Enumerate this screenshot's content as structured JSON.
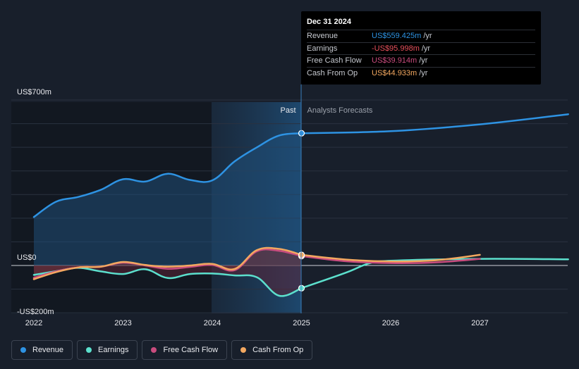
{
  "chart_data": {
    "type": "line",
    "x_unit": "year",
    "xlim": [
      2022.0,
      2027.99
    ],
    "ylim": [
      -200,
      700
    ],
    "y_ticks": [
      {
        "value": 700,
        "label": "US$700m"
      },
      {
        "value": 0,
        "label": "US$0"
      },
      {
        "value": -200,
        "label": "-US$200m"
      }
    ],
    "x_ticks": [
      "2022",
      "2023",
      "2024",
      "2025",
      "2026",
      "2027"
    ],
    "past_boundary": 2025.0,
    "past_shade_start": 2024.0,
    "past_label": "Past",
    "forecast_label": "Analysts Forecasts",
    "series": [
      {
        "name": "Revenue",
        "color": "#2e93e3",
        "past": [
          [
            2022.0,
            205
          ],
          [
            2022.25,
            270
          ],
          [
            2022.5,
            290
          ],
          [
            2022.75,
            320
          ],
          [
            2023.0,
            365
          ],
          [
            2023.25,
            355
          ],
          [
            2023.5,
            388
          ],
          [
            2023.75,
            362
          ],
          [
            2024.0,
            360
          ],
          [
            2024.25,
            440
          ],
          [
            2024.5,
            500
          ],
          [
            2024.75,
            550
          ],
          [
            2025.0,
            559.425
          ]
        ],
        "forecast": [
          [
            2025.0,
            559.425
          ],
          [
            2026.0,
            568
          ],
          [
            2027.0,
            597
          ],
          [
            2027.99,
            640
          ]
        ]
      },
      {
        "name": "Earnings",
        "color": "#5ce0cd",
        "past": [
          [
            2022.0,
            -40
          ],
          [
            2022.25,
            -24
          ],
          [
            2022.5,
            -10
          ],
          [
            2022.75,
            -25
          ],
          [
            2023.0,
            -36
          ],
          [
            2023.25,
            -16
          ],
          [
            2023.5,
            -53
          ],
          [
            2023.75,
            -36
          ],
          [
            2024.0,
            -34
          ],
          [
            2024.25,
            -42
          ],
          [
            2024.5,
            -50
          ],
          [
            2024.75,
            -128
          ],
          [
            2025.0,
            -95.998
          ]
        ],
        "forecast": [
          [
            2025.0,
            -95.998
          ],
          [
            2025.5,
            -30
          ],
          [
            2025.75,
            8
          ],
          [
            2026.0,
            20
          ],
          [
            2027.0,
            28
          ],
          [
            2027.99,
            26
          ]
        ]
      },
      {
        "name": "Free Cash Flow",
        "color": "#c94c7e",
        "past": [
          [
            2022.0,
            -52
          ],
          [
            2022.25,
            -25
          ],
          [
            2022.5,
            -8
          ],
          [
            2022.75,
            -5
          ],
          [
            2023.0,
            12
          ],
          [
            2023.25,
            0
          ],
          [
            2023.5,
            -14
          ],
          [
            2023.75,
            -6
          ],
          [
            2024.0,
            2
          ],
          [
            2024.25,
            -20
          ],
          [
            2024.5,
            60
          ],
          [
            2024.75,
            62
          ],
          [
            2025.0,
            39.914
          ]
        ],
        "forecast": [
          [
            2025.0,
            39.914
          ],
          [
            2025.5,
            18
          ],
          [
            2026.0,
            10
          ],
          [
            2026.5,
            13
          ],
          [
            2027.0,
            28
          ]
        ]
      },
      {
        "name": "Cash From Op",
        "color": "#f3a860",
        "past": [
          [
            2022.0,
            -58
          ],
          [
            2022.25,
            -28
          ],
          [
            2022.5,
            -8
          ],
          [
            2022.75,
            -5
          ],
          [
            2023.0,
            15
          ],
          [
            2023.25,
            2
          ],
          [
            2023.5,
            -5
          ],
          [
            2023.75,
            0
          ],
          [
            2024.0,
            7
          ],
          [
            2024.25,
            -15
          ],
          [
            2024.5,
            65
          ],
          [
            2024.75,
            70
          ],
          [
            2025.0,
            44.933
          ]
        ],
        "forecast": [
          [
            2025.0,
            44.933
          ],
          [
            2025.5,
            25
          ],
          [
            2026.0,
            17
          ],
          [
            2026.5,
            22
          ],
          [
            2027.0,
            45
          ]
        ]
      }
    ]
  },
  "tooltip": {
    "date": "Dec 31 2024",
    "rows": [
      {
        "label": "Revenue",
        "value": "US$559.425m",
        "unit": "/yr",
        "color": "#2e93e3"
      },
      {
        "label": "Earnings",
        "value": "-US$95.998m",
        "unit": "/yr",
        "color": "#e8505b"
      },
      {
        "label": "Free Cash Flow",
        "value": "US$39.914m",
        "unit": "/yr",
        "color": "#c94c7e"
      },
      {
        "label": "Cash From Op",
        "value": "US$44.933m",
        "unit": "/yr",
        "color": "#f3a860"
      }
    ]
  },
  "legend": [
    {
      "label": "Revenue",
      "color": "#2e93e3"
    },
    {
      "label": "Earnings",
      "color": "#5ce0cd"
    },
    {
      "label": "Free Cash Flow",
      "color": "#c94c7e"
    },
    {
      "label": "Cash From Op",
      "color": "#f3a860"
    }
  ]
}
